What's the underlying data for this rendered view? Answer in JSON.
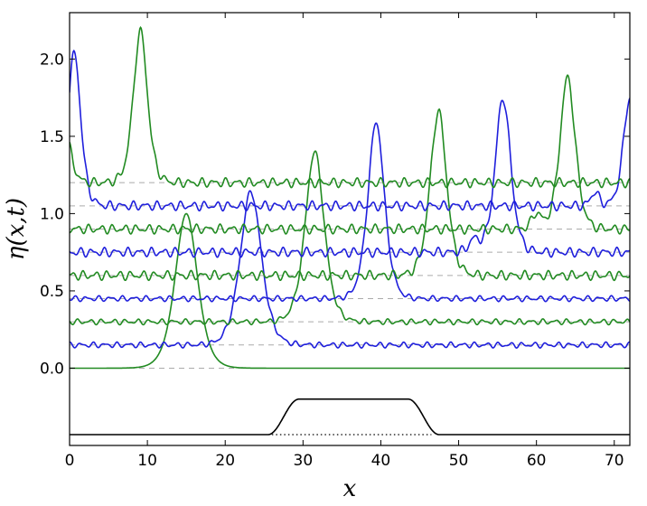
{
  "chart_data": {
    "type": "line",
    "title": "",
    "xlabel": "x",
    "ylabel": "η(x,t)",
    "xlim": [
      0,
      72
    ],
    "ylim": [
      -0.5,
      2.3
    ],
    "xticks": [
      0,
      10,
      20,
      30,
      40,
      50,
      60,
      70
    ],
    "yticks": [
      0.0,
      0.5,
      1.0,
      1.5,
      2.0
    ],
    "xtick_labels": [
      "0",
      "10",
      "20",
      "30",
      "40",
      "50",
      "60",
      "70"
    ],
    "ytick_labels": [
      "0.0",
      "0.5",
      "1.0",
      "1.5",
      "2.0"
    ],
    "grid": false,
    "legend": "none",
    "colors": {
      "green": "#228b22",
      "blue": "#1f1fdc",
      "bottom": "#000000",
      "baseline": "#aaaaaa"
    },
    "series": [
      {
        "color": "green",
        "offset": 0.0,
        "peaks": [
          {
            "x": 15.0,
            "h": 1.0,
            "w": 1.9
          }
        ],
        "ripple": 0.0
      },
      {
        "color": "blue",
        "offset": 0.15,
        "peaks": [
          {
            "x": 23.3,
            "h": 0.99,
            "w": 1.8
          }
        ],
        "ripple": 0.012
      },
      {
        "color": "green",
        "offset": 0.3,
        "peaks": [
          {
            "x": 31.5,
            "h": 1.1,
            "w": 1.6
          }
        ],
        "ripple": 0.012
      },
      {
        "color": "blue",
        "offset": 0.45,
        "peaks": [
          {
            "x": 39.4,
            "h": 1.14,
            "w": 1.4
          }
        ],
        "ripple": 0.012
      },
      {
        "color": "green",
        "offset": 0.6,
        "peaks": [
          {
            "x": 47.4,
            "h": 1.06,
            "w": 1.4
          }
        ],
        "ripple": 0.02
      },
      {
        "color": "blue",
        "offset": 0.75,
        "peaks": [
          {
            "x": 55.7,
            "h": 1.0,
            "w": 1.3
          },
          {
            "x": 52.0,
            "h": 0.08,
            "w": 0.9
          }
        ],
        "ripple": 0.02
      },
      {
        "color": "green",
        "offset": 0.9,
        "peaks": [
          {
            "x": 64.0,
            "h": 0.98,
            "w": 1.3
          },
          {
            "x": 60.0,
            "h": 0.1,
            "w": 0.8
          }
        ],
        "ripple": 0.02
      },
      {
        "color": "blue",
        "offset": 1.05,
        "peaks": [
          {
            "x": 72.0,
            "h": 0.7,
            "w": 1.1
          },
          {
            "x": 0.6,
            "h": 0.99,
            "w": 1.1
          },
          {
            "x": 67.5,
            "h": 0.09,
            "w": 0.7
          }
        ],
        "ripple": 0.02
      },
      {
        "color": "green",
        "offset": 1.2,
        "peaks": [
          {
            "x": 9.1,
            "h": 0.98,
            "w": 1.2
          },
          {
            "x": -0.5,
            "h": 0.3,
            "w": 1.0
          }
        ],
        "ripple": 0.02
      }
    ],
    "bottom_profile": {
      "base": -0.43,
      "top": -0.2,
      "rise_start": 25.5,
      "rise_end": 29.5,
      "fall_start": 43.5,
      "fall_end": 47.5,
      "dotted_from": 26,
      "dotted_to": 46.5
    }
  }
}
